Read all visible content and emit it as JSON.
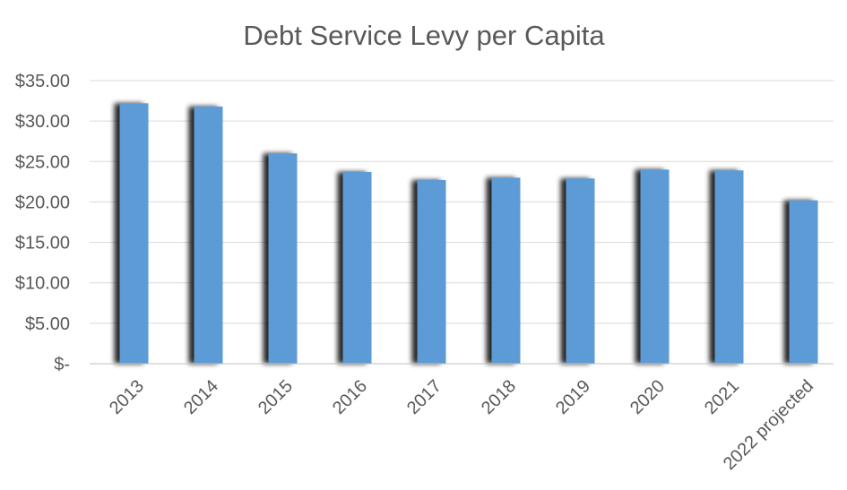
{
  "chart_data": {
    "type": "bar",
    "title": "Debt Service Levy per Capita",
    "xlabel": "",
    "ylabel": "",
    "categories": [
      "2013",
      "2014",
      "2015",
      "2016",
      "2017",
      "2018",
      "2019",
      "2020",
      "2021",
      "2022 projected"
    ],
    "values": [
      32.2,
      31.8,
      26.0,
      23.7,
      22.7,
      23.0,
      22.9,
      24.0,
      23.9,
      20.2
    ],
    "ylim": [
      0,
      35
    ],
    "yticks": [
      {
        "value": 35,
        "label": "$35.00"
      },
      {
        "value": 30,
        "label": "$30.00"
      },
      {
        "value": 25,
        "label": "$25.00"
      },
      {
        "value": 20,
        "label": "$20.00"
      },
      {
        "value": 15,
        "label": "$15.00"
      },
      {
        "value": 10,
        "label": "$10.00"
      },
      {
        "value": 5,
        "label": "$5.00"
      },
      {
        "value": 0,
        "label": "$-"
      }
    ],
    "grid": true,
    "legend": "none",
    "bar_color": "#5b9bd5",
    "shadow_color": "#3a3a3a"
  }
}
